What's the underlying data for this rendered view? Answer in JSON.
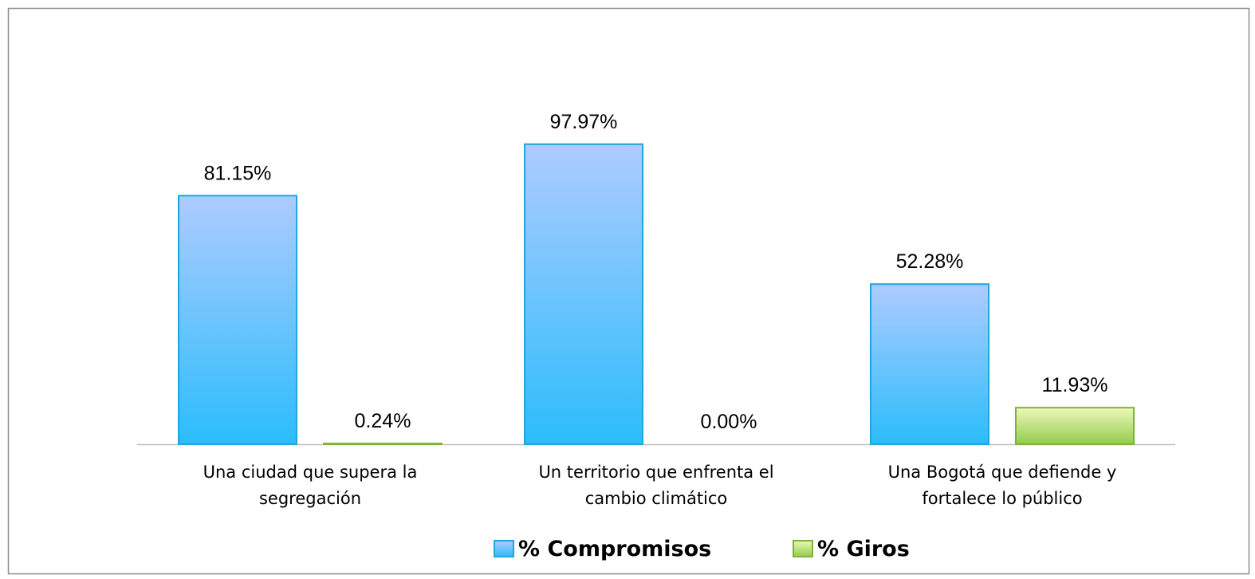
{
  "chart_data": {
    "type": "bar",
    "categories": [
      "Una ciudad que supera la segregación",
      "Un territorio que enfrenta el cambio climático",
      "Una Bogotá que defiende y fortalece lo público"
    ],
    "series": [
      {
        "name": "% Compromisos",
        "color": "#1fa6dc",
        "values": [
          81.15,
          97.97,
          52.28
        ],
        "value_labels": [
          "81.15%",
          "97.97%",
          "52.28%"
        ]
      },
      {
        "name": "% Giros",
        "color": "#7fb23c",
        "values": [
          0.24,
          0.0,
          11.93
        ],
        "value_labels": [
          "0.24%",
          "0.00%",
          "11.93%"
        ]
      }
    ],
    "ylim": [
      0,
      100
    ],
    "grid": false,
    "legend": "bottom"
  }
}
